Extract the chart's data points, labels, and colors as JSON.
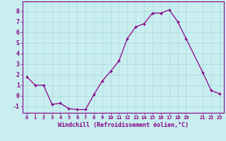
{
  "x": [
    0,
    1,
    2,
    3,
    4,
    5,
    6,
    7,
    8,
    9,
    10,
    11,
    12,
    13,
    14,
    15,
    16,
    17,
    18,
    19,
    21,
    22,
    23
  ],
  "y": [
    1.8,
    1.0,
    1.0,
    -0.8,
    -0.7,
    -1.2,
    -1.3,
    -1.3,
    0.1,
    1.4,
    2.3,
    3.3,
    5.4,
    6.5,
    6.8,
    7.8,
    7.8,
    8.1,
    7.0,
    5.4,
    2.2,
    0.5,
    0.2
  ],
  "line_color": "#880088",
  "marker": "+",
  "bg_color": "#c8eef0",
  "grid_color": "#aad8dc",
  "xlabel": "Windchill (Refroidissement éolien,°C)",
  "xlim": [
    -0.5,
    23.5
  ],
  "ylim": [
    -1.6,
    8.9
  ],
  "xticks": [
    0,
    1,
    2,
    3,
    4,
    5,
    6,
    7,
    8,
    9,
    10,
    11,
    12,
    13,
    14,
    15,
    16,
    17,
    18,
    19,
    21,
    22,
    23
  ],
  "yticks": [
    -1,
    0,
    1,
    2,
    3,
    4,
    5,
    6,
    7,
    8
  ],
  "axis_color": "#880088",
  "tick_color": "#880088",
  "label_color": "#880088",
  "xtick_fontsize": 5.0,
  "ytick_fontsize": 6.0,
  "xlabel_fontsize": 6.0,
  "linewidth": 0.9,
  "markersize": 3.5
}
